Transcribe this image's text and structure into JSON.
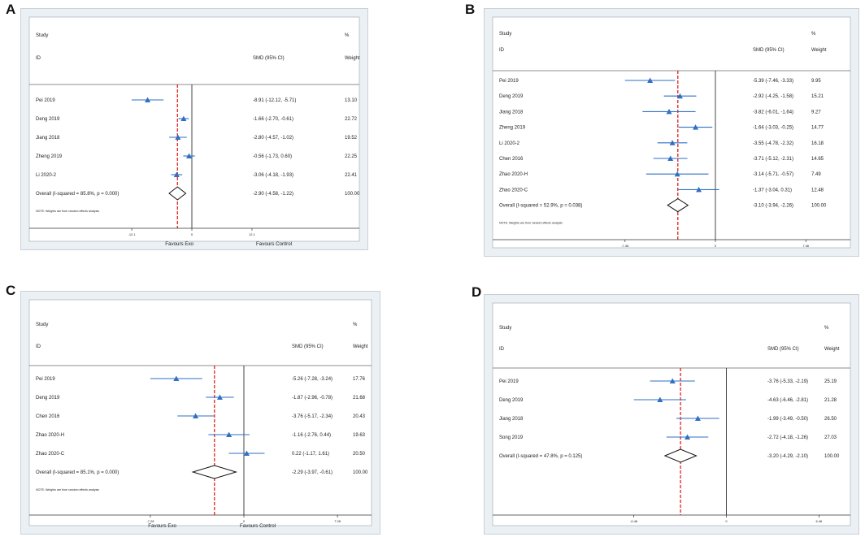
{
  "chart_data": [
    {
      "type": "forest",
      "panel_label": "A",
      "header": {
        "study": "Study",
        "id": "ID",
        "effect": "SMD (95% CI)",
        "pct": "%",
        "weight": "Weight"
      },
      "xlim": [
        -18,
        18
      ],
      "ticks": [
        "-12.1",
        "0",
        "12.1"
      ],
      "tick_values": [
        -12.1,
        0,
        12.1
      ],
      "overall_line": -2.9,
      "xlabel_left": "Favours Exo",
      "xlabel_right": "Favours Control",
      "note": "NOTE: Weights are from random effects analysis",
      "studies": [
        {
          "id": "Pei 2019",
          "est": -8.91,
          "lo": -12.12,
          "hi": -5.71,
          "ci_text": "-8.91 (-12.12, -5.71)",
          "weight": "13.10"
        },
        {
          "id": "Deng 2019",
          "est": -1.66,
          "lo": -2.7,
          "hi": -0.61,
          "ci_text": "-1.66 (-2.70, -0.61)",
          "weight": "22.72"
        },
        {
          "id": "Jiang 2018",
          "est": -2.8,
          "lo": -4.57,
          "hi": -1.02,
          "ci_text": "-2.80 (-4.57, -1.02)",
          "weight": "19.52"
        },
        {
          "id": "Zheng 2019",
          "est": -0.56,
          "lo": -1.73,
          "hi": 0.6,
          "ci_text": "-0.56 (-1.73, 0.60)",
          "weight": "22.25"
        },
        {
          "id": "Li 2020-2",
          "est": -3.06,
          "lo": -4.18,
          "hi": -1.93,
          "ci_text": "-3.06 (-4.18, -1.93)",
          "weight": "22.41"
        }
      ],
      "overall": {
        "label": "Overall  (I-squared = 85.8%, p = 0.000)",
        "est": -2.9,
        "lo": -4.58,
        "hi": -1.22,
        "ci_text": "-2.90 (-4.58, -1.22)",
        "weight": "100.00"
      }
    },
    {
      "type": "forest",
      "panel_label": "B",
      "header": {
        "study": "Study",
        "id": "ID",
        "effect": "SMD (95% CI)",
        "pct": "%",
        "weight": "Weight"
      },
      "xlim": [
        -11,
        11
      ],
      "ticks": [
        "-7.46",
        "0",
        "7.46"
      ],
      "tick_values": [
        -7.46,
        0,
        7.46
      ],
      "overall_line": -3.1,
      "xlabel_left": "",
      "xlabel_right": "",
      "note": "NOTE: Weights are from random effects analysis",
      "studies": [
        {
          "id": "Pei 2019",
          "est": -5.39,
          "lo": -7.46,
          "hi": -3.33,
          "ci_text": "-5.39 (-7.46, -3.33)",
          "weight": "9.95"
        },
        {
          "id": "Deng 2019",
          "est": -2.92,
          "lo": -4.25,
          "hi": -1.58,
          "ci_text": "-2.92 (-4.25, -1.58)",
          "weight": "15.21"
        },
        {
          "id": "Jiang 2018",
          "est": -3.82,
          "lo": -6.01,
          "hi": -1.64,
          "ci_text": "-3.82 (-6.01, -1.64)",
          "weight": "9.27"
        },
        {
          "id": "Zheng 2019",
          "est": -1.64,
          "lo": -3.03,
          "hi": -0.25,
          "ci_text": "-1.64 (-3.03, -0.25)",
          "weight": "14.77"
        },
        {
          "id": "Li 2020-2",
          "est": -3.55,
          "lo": -4.78,
          "hi": -2.32,
          "ci_text": "-3.55 (-4.78, -2.32)",
          "weight": "16.18"
        },
        {
          "id": "Chen 2016",
          "est": -3.71,
          "lo": -5.12,
          "hi": -2.31,
          "ci_text": "-3.71 (-5.12, -2.31)",
          "weight": "14.65"
        },
        {
          "id": "Zhao 2020-H",
          "est": -3.14,
          "lo": -5.71,
          "hi": -0.57,
          "ci_text": "-3.14 (-5.71, -0.57)",
          "weight": "7.49"
        },
        {
          "id": "Zhao 2020-C",
          "est": -1.37,
          "lo": -3.04,
          "hi": 0.31,
          "ci_text": "-1.37 (-3.04, 0.31)",
          "weight": "12.48"
        }
      ],
      "overall": {
        "label": "Overall  (I-squared = 52.9%, p = 0.038)",
        "est": -3.1,
        "lo": -3.94,
        "hi": -2.26,
        "ci_text": "-3.10 (-3.94, -2.26)",
        "weight": "100.00"
      }
    },
    {
      "type": "forest",
      "panel_label": "C",
      "header": {
        "study": "Study",
        "id": "ID",
        "effect": "SMD (95% CI)",
        "pct": "%",
        "weight": "Weight"
      },
      "xlim": [
        -10.5,
        10.5
      ],
      "ticks": [
        "-7.28",
        "0",
        "7.28"
      ],
      "tick_values": [
        -7.28,
        0,
        7.28
      ],
      "overall_line": -2.29,
      "xlabel_left": "Favours Exo",
      "xlabel_right": "Favours Control",
      "note": "NOTE: Weights are from random effects analysis",
      "studies": [
        {
          "id": "Pei 2019",
          "est": -5.26,
          "lo": -7.28,
          "hi": -3.24,
          "ci_text": "-5.26 (-7.28, -3.24)",
          "weight": "17.76"
        },
        {
          "id": "Deng 2019",
          "est": -1.87,
          "lo": -2.96,
          "hi": -0.78,
          "ci_text": "-1.87 (-2.96, -0.78)",
          "weight": "21.68"
        },
        {
          "id": "Chen 2016",
          "est": -3.76,
          "lo": -5.17,
          "hi": -2.34,
          "ci_text": "-3.76 (-5.17, -2.34)",
          "weight": "20.43"
        },
        {
          "id": "Zhao 2020-H",
          "est": -1.16,
          "lo": -2.76,
          "hi": 0.44,
          "ci_text": "-1.16 (-2.76, 0.44)",
          "weight": "19.63"
        },
        {
          "id": "Zhao 2020-C",
          "est": 0.22,
          "lo": -1.17,
          "hi": 1.61,
          "ci_text": "0.22 (-1.17, 1.61)",
          "weight": "20.50"
        }
      ],
      "overall": {
        "label": "Overall  (I-squared = 85.1%, p = 0.000)",
        "est": -2.29,
        "lo": -3.97,
        "hi": -0.61,
        "ci_text": "-2.29 (-3.97, -0.61)",
        "weight": "100.00"
      }
    },
    {
      "type": "forest",
      "panel_label": "D",
      "header": {
        "study": "Study",
        "id": "ID",
        "effect": "SMD (95% CI)",
        "pct": "%",
        "weight": "Weight"
      },
      "xlim": [
        -9.5,
        9.5
      ],
      "ticks": [
        "-6.46",
        "0",
        "6.46"
      ],
      "tick_values": [
        -6.46,
        0,
        6.46
      ],
      "overall_line": -3.2,
      "xlabel_left": "",
      "xlabel_right": "",
      "note": "",
      "studies": [
        {
          "id": "Pei 2019",
          "est": -3.76,
          "lo": -5.33,
          "hi": -2.19,
          "ci_text": "-3.76 (-5.33, -2.19)",
          "weight": "25.19"
        },
        {
          "id": "Deng 2019",
          "est": -4.63,
          "lo": -6.46,
          "hi": -2.81,
          "ci_text": "-4.63 (-6.46, -2.81)",
          "weight": "21.28"
        },
        {
          "id": "Jiang 2018",
          "est": -1.99,
          "lo": -3.49,
          "hi": -0.5,
          "ci_text": "-1.99 (-3.49, -0.50)",
          "weight": "26.50"
        },
        {
          "id": "Song 2019",
          "est": -2.72,
          "lo": -4.18,
          "hi": -1.26,
          "ci_text": "-2.72 (-4.18, -1.26)",
          "weight": "27.03"
        }
      ],
      "overall": {
        "label": "Overall  (I-squared = 47.8%, p = 0.125)",
        "est": -3.2,
        "lo": -4.29,
        "hi": -2.1,
        "ci_text": "-3.20 (-4.29, -2.10)",
        "weight": "100.00"
      }
    }
  ]
}
